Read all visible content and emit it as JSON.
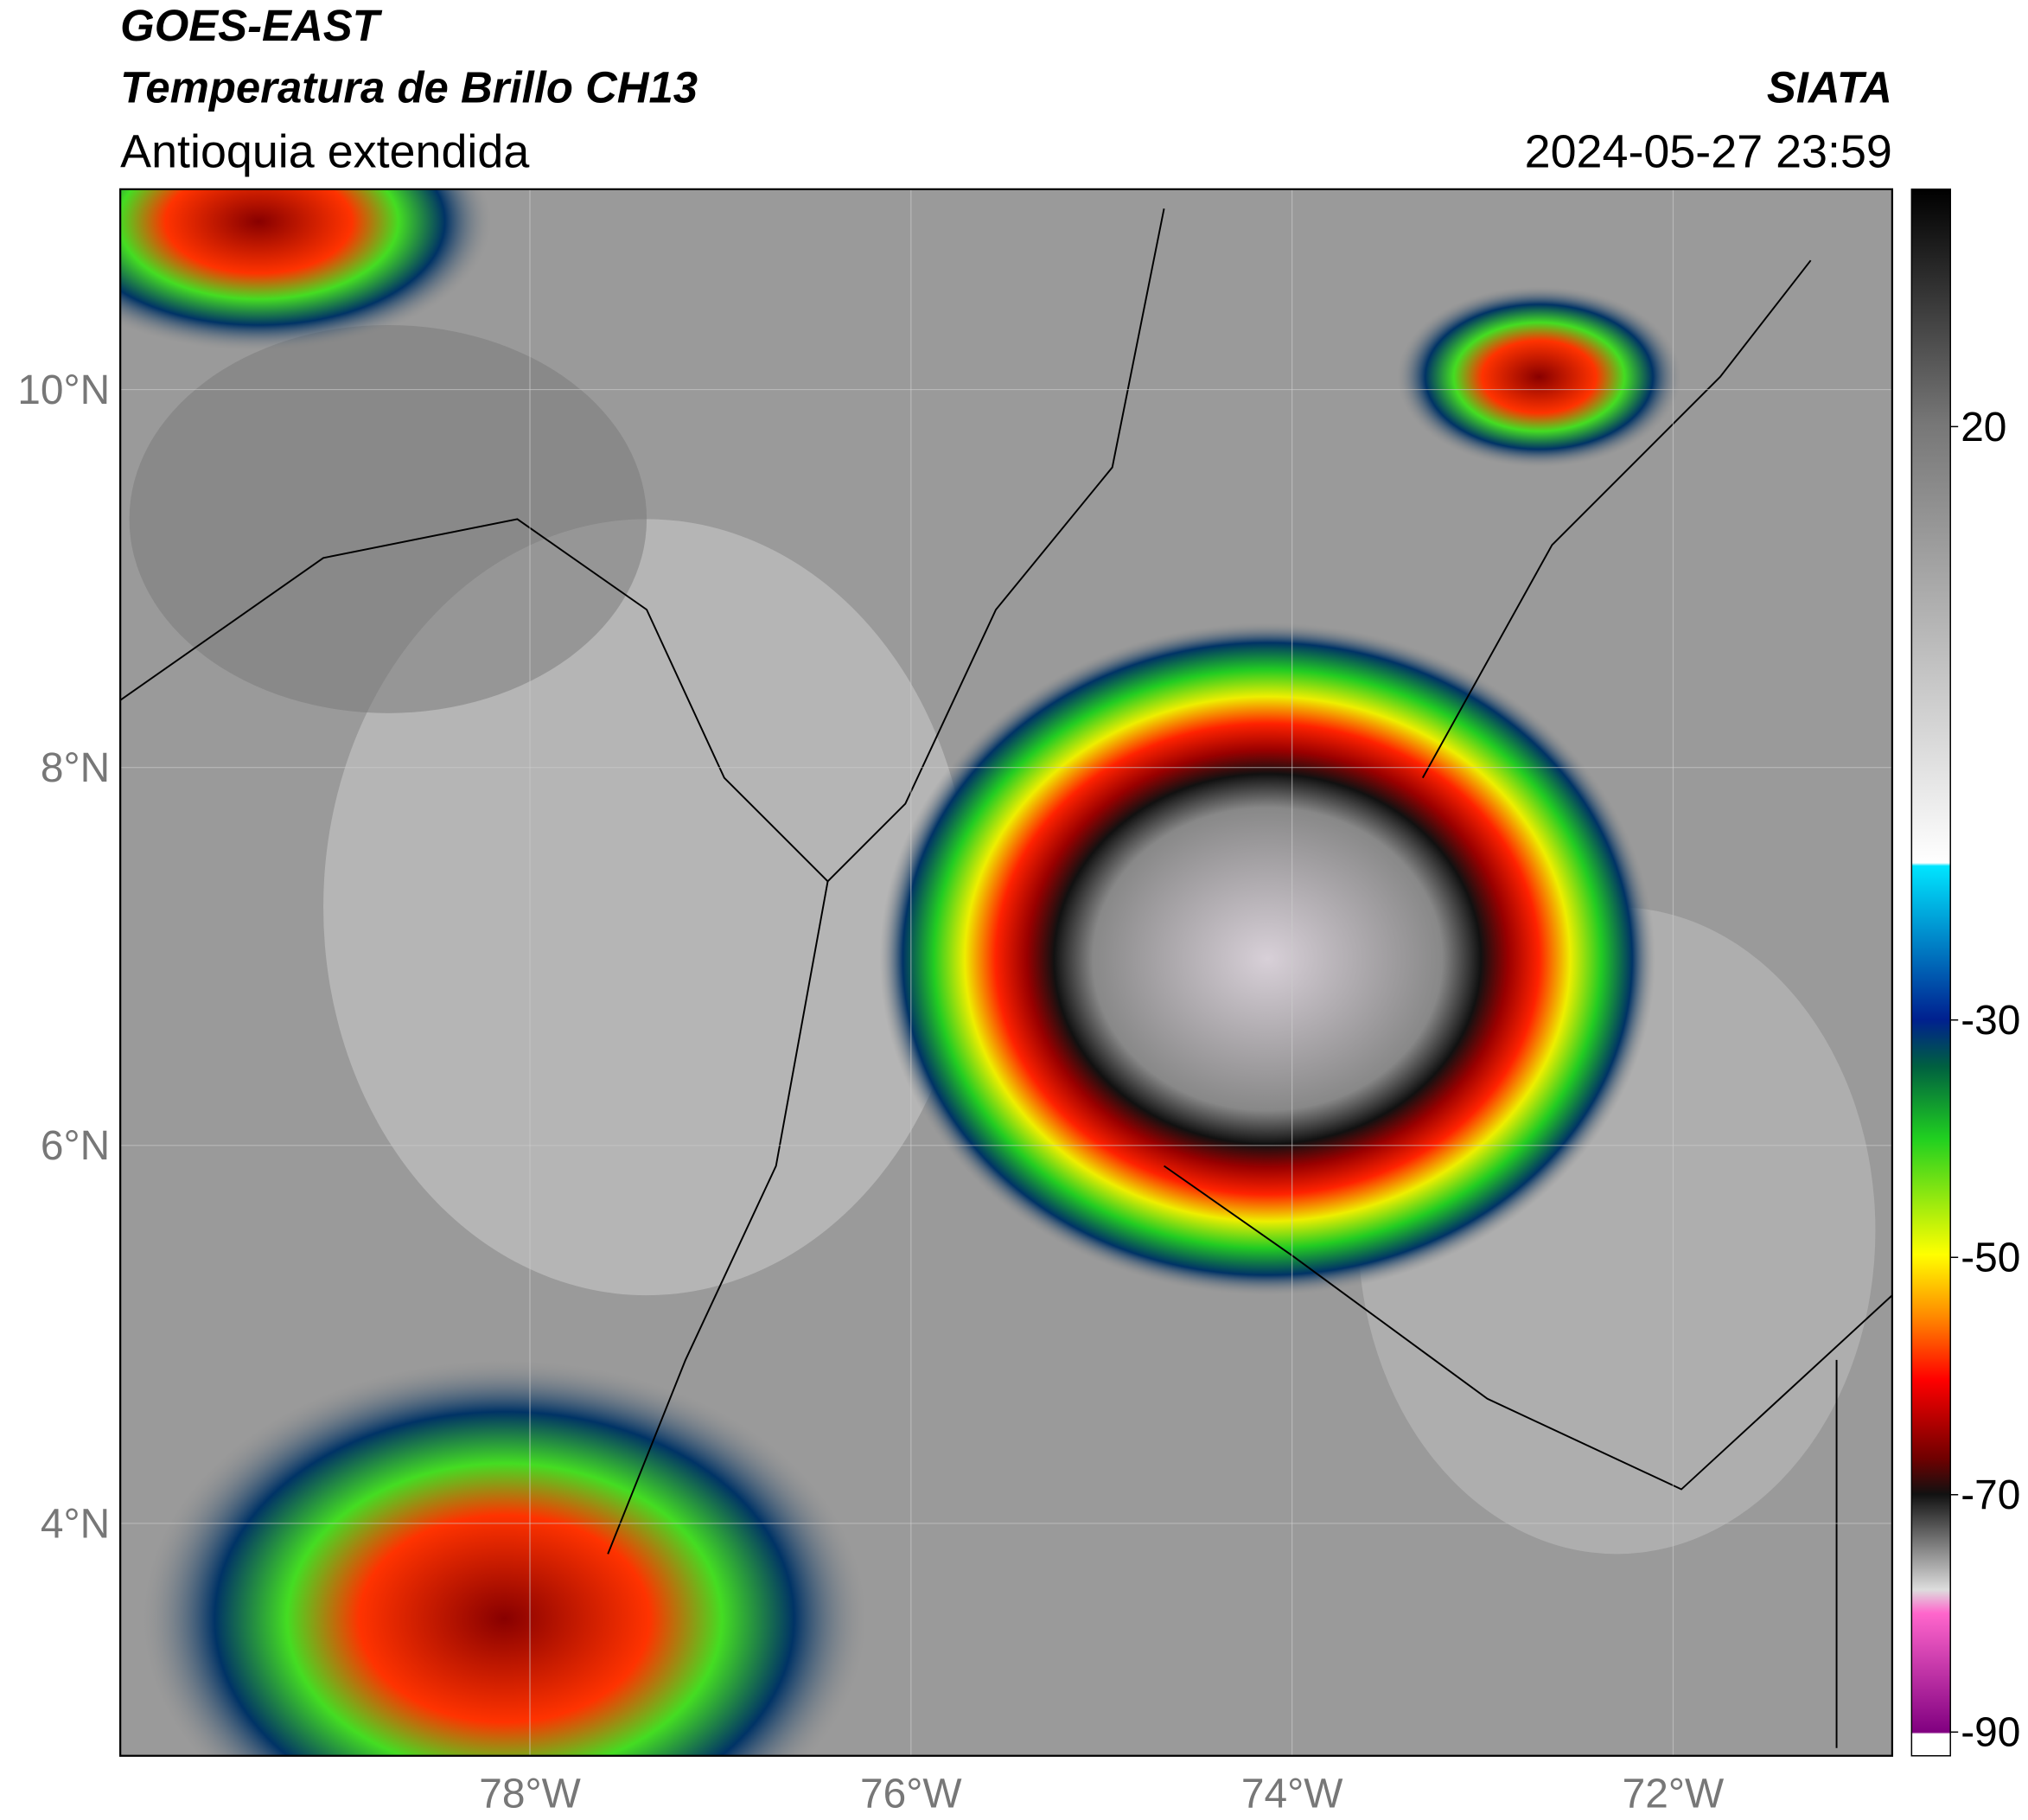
{
  "header": {
    "title": "GOES-EAST",
    "subtitle": "Temperatura de Brillo CH13",
    "region": "Antioquia extendida",
    "source": "SIATA",
    "datetime": "2024-05-27 23:59"
  },
  "map": {
    "xlim": [
      -80.15,
      -70.85
    ],
    "ylim": [
      2.77,
      11.06
    ],
    "xticks": [
      {
        "value": -78,
        "label": "78°W"
      },
      {
        "value": -76,
        "label": "76°W"
      },
      {
        "value": -74,
        "label": "74°W"
      },
      {
        "value": -72,
        "label": "72°W"
      }
    ],
    "yticks": [
      {
        "value": 4,
        "label": "4°N"
      },
      {
        "value": 6,
        "label": "6°N"
      },
      {
        "value": 8,
        "label": "8°N"
      },
      {
        "value": 10,
        "label": "10°N"
      }
    ]
  },
  "colorbar": {
    "clim": [
      -92,
      40
    ],
    "ticks": [
      20,
      -30,
      -50,
      -70,
      -90
    ]
  }
}
